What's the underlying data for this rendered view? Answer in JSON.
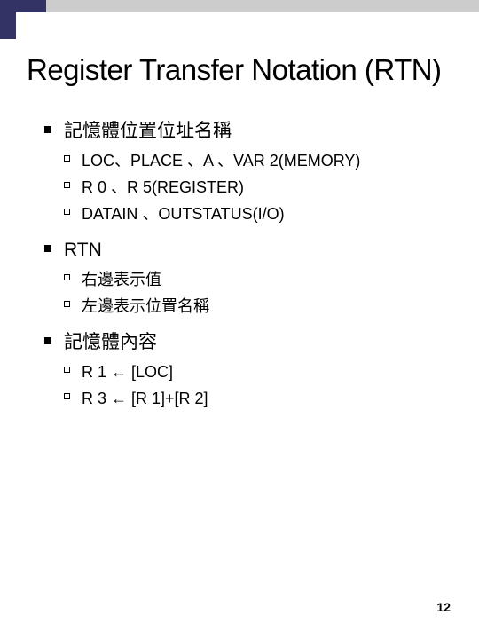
{
  "colors": {
    "navy": "#333366",
    "gray": "#cccccc",
    "bg": "#ffffff",
    "text": "#000000"
  },
  "title": "Register Transfer Notation (RTN)",
  "items": [
    {
      "text": "記憶體位置位址名稱",
      "sub": [
        "LOC、PLACE 、A 、VAR 2(MEMORY)",
        "R 0 、R 5(REGISTER)",
        "DATAIN 、OUTSTATUS(I/O)"
      ]
    },
    {
      "text": "RTN",
      "sub": [
        "右邊表示值",
        "左邊表示位置名稱"
      ]
    },
    {
      "text": "記憶體內容",
      "sub": [
        "R 1 ← [LOC]",
        "R 3 ← [R 1]+[R 2]"
      ]
    }
  ],
  "page_number": "12"
}
